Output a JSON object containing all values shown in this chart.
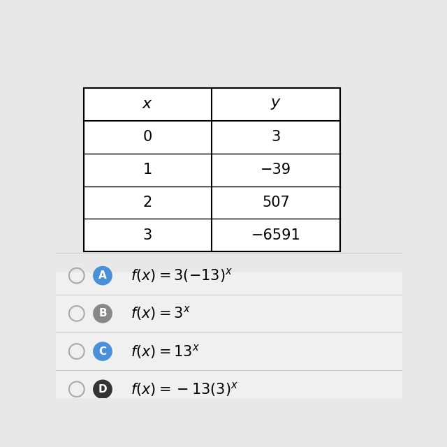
{
  "table_headers": [
    "x",
    "y"
  ],
  "table_data": [
    [
      "0",
      "3"
    ],
    [
      "1",
      "−39"
    ],
    [
      "2",
      "507"
    ],
    [
      "3",
      "−6591"
    ]
  ],
  "choice_texts": [
    "$f(x) = 3(-13)^x$",
    "$f(x) = 3^x$",
    "$f(x) = 13^x$",
    "$f(x) = -13(3)^x$"
  ],
  "bg_color": "#e8e8e8",
  "table_bg": "#ffffff",
  "header_font_size": 16,
  "data_font_size": 15,
  "choice_font_size": 15,
  "label_letters": [
    "A",
    "B",
    "C",
    "D"
  ],
  "label_bg_colors": [
    "#4a90d9",
    "#888888",
    "#4a90d9",
    "#333333"
  ]
}
